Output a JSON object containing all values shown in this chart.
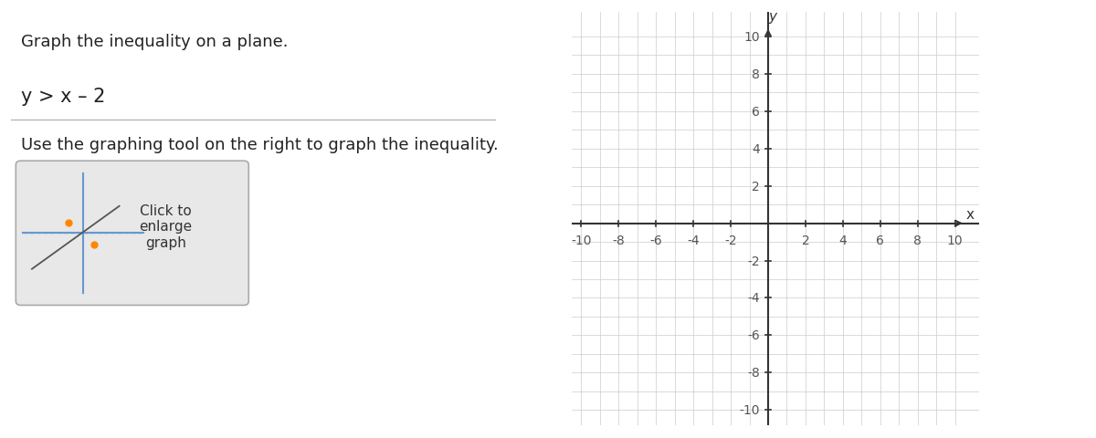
{
  "title_text": "Graph the inequality on a plane.",
  "inequality_text": "y > x – 2",
  "instruction_text": "Use the graphing tool on the right to graph the inequality.",
  "xmin": -10,
  "xmax": 10,
  "ymin": -10,
  "ymax": 10,
  "xticks": [
    -10,
    -8,
    -6,
    -4,
    -2,
    2,
    4,
    6,
    8,
    10
  ],
  "yticks": [
    -10,
    -8,
    -6,
    -4,
    -2,
    2,
    4,
    6,
    8,
    10
  ],
  "grid_color": "#cccccc",
  "axis_color": "#333333",
  "tick_label_color": "#555555",
  "background_color": "#ffffff",
  "graph_bg_color": "#ffffff",
  "xlabel": "x",
  "ylabel": "y",
  "title_fontsize": 13,
  "inequality_fontsize": 15,
  "instruction_fontsize": 13,
  "tick_fontsize": 10,
  "separator_y": 0.74,
  "separator_color": "#aaaaaa",
  "thumb_box_color": "#e8e8e8",
  "thumb_box_edge": "#aaaaaa",
  "thumb_axis_color": "#6699cc",
  "thumb_line_color": "#555555",
  "thumb_dot_color": "#ff8800"
}
